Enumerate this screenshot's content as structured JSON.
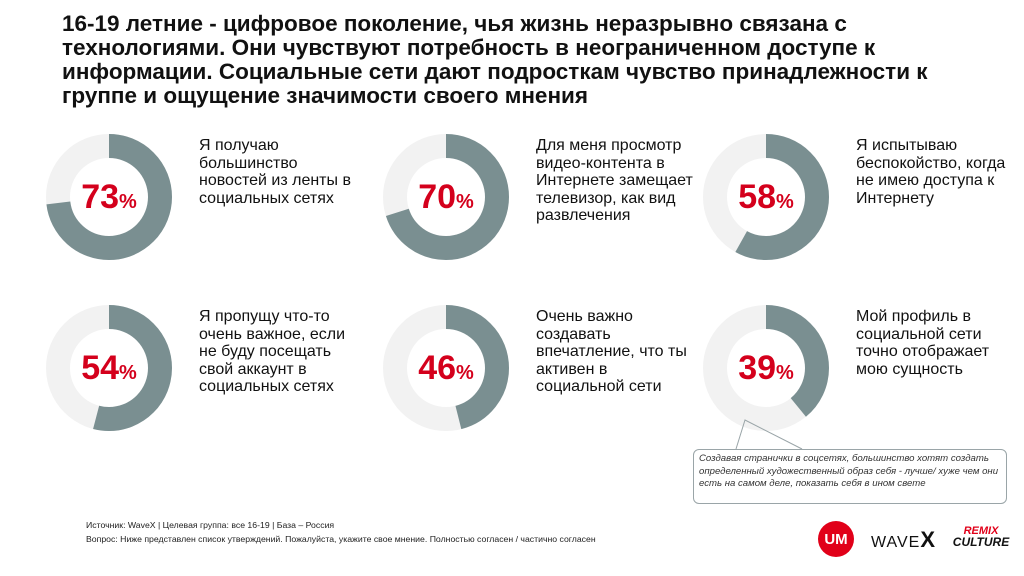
{
  "title": "16-19 летние - цифровое поколение, чья жизнь неразрывно связана с технологиями. Они чувствуют потребность в неограниченном доступе к информации. Социальные сети дают подросткам чувство принадлежности к группе и ощущение значимости своего мнения",
  "chart_data": {
    "type": "pie",
    "variant": "donut",
    "unit": "%",
    "colors": {
      "filled": "#7a8f91",
      "remainder": "#f2f2f2",
      "value_text": "#d4001c"
    },
    "items": [
      {
        "value": 73,
        "label": "Я получаю большинство новостей из ленты в социальных сетях"
      },
      {
        "value": 70,
        "label": "Для меня просмотр видео-контента в Интернете замещает телевизор, как вид развлечения"
      },
      {
        "value": 58,
        "label": "Я испытываю беспокойство, когда не имею доступа к Интернету"
      },
      {
        "value": 54,
        "label": "Я пропущу что-то очень важное, если не буду посещать свой аккаунт в социальных сетях"
      },
      {
        "value": 46,
        "label": "Очень важно создавать впечатление, что ты активен в социальной сети"
      },
      {
        "value": 39,
        "label": "Мой профиль в социальной сети точно отображает мою сущность"
      }
    ]
  },
  "callout": "Создавая странички в соцсетях, большинство  хотят создать определенный художественный образ себя - лучше/ хуже чем они есть на самом деле, показать себя в ином свете",
  "source": {
    "line1": "Источник:  WaveX | Целевая группа: все 16-19 | База  – Россия",
    "line2": "Вопрос: Ниже представлен список утверждений. Пожалуйста, укажите свое мнение. Полностью согласен / частично согласен"
  },
  "logos": {
    "um": "UM",
    "wave": "WAVE",
    "wave_x": "X",
    "remix_top": "REMIX",
    "remix_bottom": "CULTURE"
  }
}
